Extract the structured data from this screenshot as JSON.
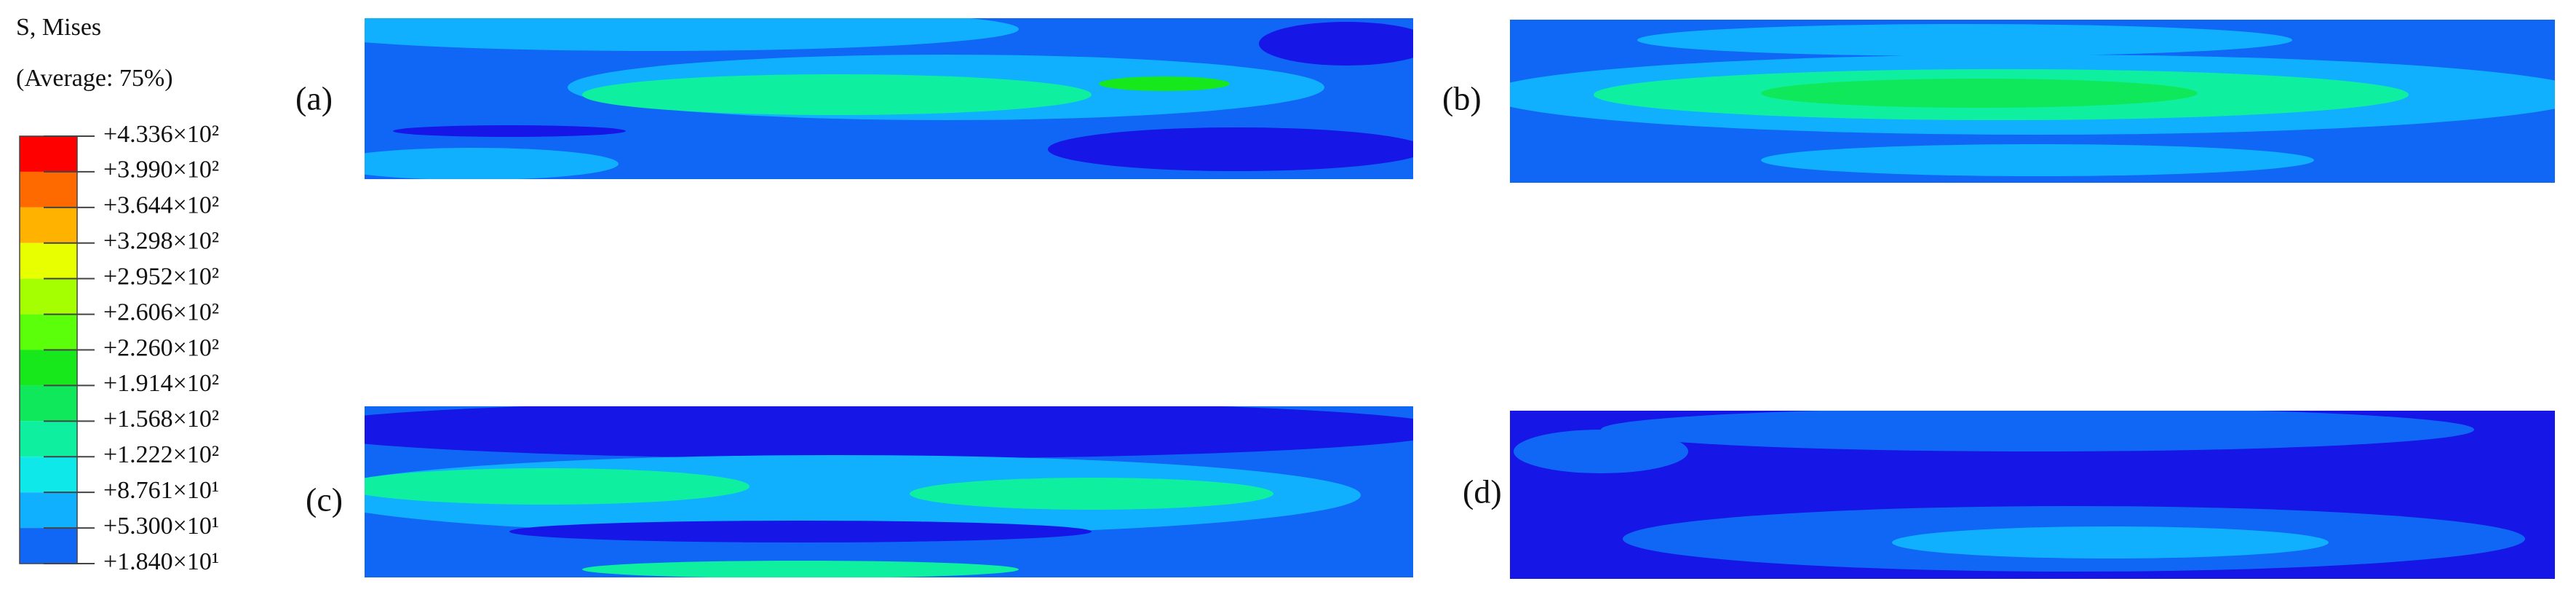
{
  "legend": {
    "title": "S, Mises",
    "subtitle": "(Average: 75%)",
    "labels": [
      "+4.336×10²",
      "+3.990×10²",
      "+3.644×10²",
      "+3.298×10²",
      "+2.952×10²",
      "+2.606×10²",
      "+2.260×10²",
      "+1.914×10²",
      "+1.568×10²",
      "+1.222×10²",
      "+8.761×10¹",
      "+5.300×10¹",
      "+1.840×10¹"
    ],
    "colors": [
      "#ff0000",
      "#ff6a00",
      "#ffb300",
      "#e8ff00",
      "#a6ff00",
      "#5cff0a",
      "#16e81c",
      "#0ee85a",
      "#0ef0a0",
      "#0ee8e8",
      "#10b0ff",
      "#1066f5",
      "#1616e6"
    ]
  },
  "panels": [
    {
      "label": "(a)"
    },
    {
      "label": "(b)"
    },
    {
      "label": "(c)"
    },
    {
      "label": "(d)"
    }
  ]
}
